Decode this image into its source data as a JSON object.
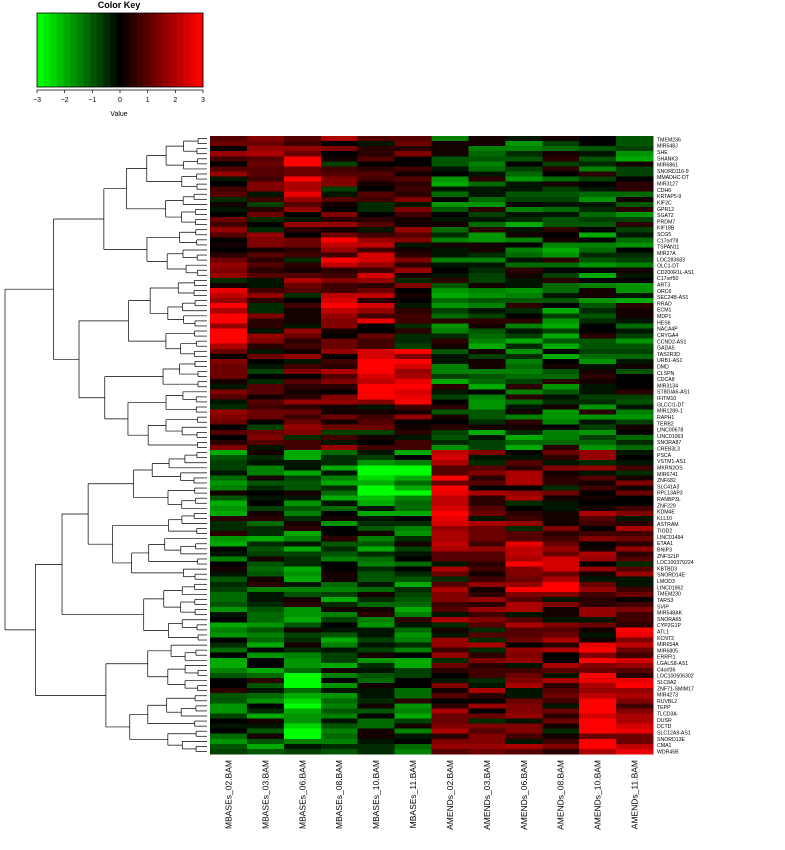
{
  "chart_data": {
    "type": "heatmap",
    "color_key": {
      "title": "Color Key",
      "xlabel": "Value",
      "range": [
        -3,
        3
      ],
      "ticks": [
        "−3",
        "−2",
        "−1",
        "0",
        "1",
        "2",
        "3"
      ],
      "low_color": "#00ff00",
      "mid_color": "#000000",
      "high_color": "#ff0000"
    },
    "columns": [
      "MBASEs_02.BAM",
      "MBASEs_03.BAM",
      "MBASEs_06.BAM",
      "MBASEs_08.BAM",
      "MBASEs_10.BAM",
      "MBASEs_11.BAM",
      "AMENDs_02.BAM",
      "AMENDs_03.BAM",
      "AMENDs_06.BAM",
      "AMENDs_08.BAM",
      "AMENDs_10.BAM",
      "AMENDs_11.BAM"
    ],
    "row_labels": [
      "TMEM236",
      "MIR548J",
      "SHE",
      "SHANK3",
      "MIR6861",
      "SNORD116-9",
      "MMADHC-DT",
      "MIR3127",
      "CDH6",
      "KRTAP5-9",
      "KIF2C",
      "GPR12",
      "SGAT2",
      "PRDM7",
      "KIF18B",
      "SCG5",
      "C17orf78",
      "TSPAN11",
      "MIR27A",
      "LOC283683",
      "OLC1-DT",
      "CD200R1L-AS1",
      "C17orf50",
      "ART3",
      "ORC6",
      "SEC24B-AS1",
      "RRAD",
      "ECM1",
      "MDP1",
      "HES6",
      "NACA4P",
      "CRYGA4",
      "CCND2-AS1",
      "GADA5",
      "TAS2R3D",
      "URB1-AS1",
      "DMD",
      "CLSPN",
      "CDCA8",
      "MIR3134",
      "ST8GIA6-AS1",
      "IFITM10",
      "GLCCI1-DT",
      "MIR1289-1",
      "RAPH1",
      "TERB2",
      "LINC00678",
      "LINC01063",
      "SNORA87",
      "CREB3L3",
      "PSCA",
      "VSTM1-AS1",
      "MKRN2OS",
      "MIR6741",
      "ZNF682",
      "SLC41A3",
      "RPL13AP3",
      "RANBP3L",
      "ZNF229",
      "KDM4E",
      "KLL10",
      "ASTRAM",
      "TIGD2",
      "LINC01494",
      "ETAA1",
      "BNIP3",
      "ZNF321P",
      "LOC100379224",
      "KBTBD3",
      "SNORD14E",
      "LMOD3",
      "LINC01962",
      "TMEM230",
      "TARS3",
      "SVIP",
      "MIR548AK",
      "SNORA65",
      "CYP2G1P",
      "ATL1",
      "KCNT2",
      "MIR654A",
      "MIR6805",
      "ERRFI1",
      "LGALS8-AS1",
      "C4orf36",
      "LOC100506302",
      "SLC8A2",
      "ZNF71-SMIM17",
      "MIR4273",
      "RUVBL2",
      "TEPP",
      "TLCD3A",
      "DUSR",
      "DCTD",
      "SLC12A9-AS1",
      "SNORD13E",
      "CMA1",
      "WDR45B"
    ],
    "n_rows": 122,
    "dendrogram": {
      "rows": true,
      "columns": false
    }
  }
}
